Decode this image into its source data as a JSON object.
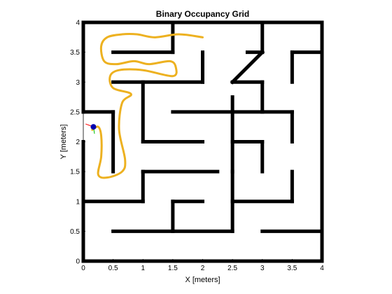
{
  "chart_data": {
    "type": "occupancy-grid",
    "title": "Binary Occupancy Grid",
    "xlabel": "X [meters]",
    "ylabel": "Y [meters]",
    "xlim": [
      0,
      4
    ],
    "ylim": [
      0,
      4
    ],
    "xticks": [
      "0",
      "0.5",
      "1",
      "1.5",
      "2",
      "2.5",
      "3",
      "3.5",
      "4"
    ],
    "yticks": [
      "0",
      "0.5",
      "1",
      "1.5",
      "2",
      "2.5",
      "3",
      "3.5",
      "4"
    ],
    "colors": {
      "wall": "#000000",
      "path": "#EDB120",
      "robot_body": "#0000B0",
      "heading_x": "#FF0000",
      "heading_y": "#00C000"
    },
    "walls": [
      [
        [
          0,
          0
        ],
        [
          4,
          0
        ]
      ],
      [
        [
          0,
          4
        ],
        [
          4,
          4
        ]
      ],
      [
        [
          0,
          0
        ],
        [
          0,
          2
        ]
      ],
      [
        [
          0,
          2.5
        ],
        [
          0,
          4
        ]
      ],
      [
        [
          4,
          0
        ],
        [
          4,
          4
        ]
      ],
      [
        [
          0.5,
          3.5
        ],
        [
          1.5,
          3.5
        ]
      ],
      [
        [
          1.5,
          3.5
        ],
        [
          1.5,
          4
        ]
      ],
      [
        [
          3,
          3.5
        ],
        [
          3,
          4
        ]
      ],
      [
        [
          2.75,
          3.5
        ],
        [
          3,
          3.5
        ]
      ],
      [
        [
          3.5,
          3.5
        ],
        [
          4,
          3.5
        ]
      ],
      [
        [
          3.5,
          3.0
        ],
        [
          3.5,
          3.5
        ]
      ],
      [
        [
          2,
          3
        ],
        [
          2,
          3.5
        ]
      ],
      [
        [
          0.5,
          3
        ],
        [
          2,
          3
        ]
      ],
      [
        [
          1,
          2
        ],
        [
          1,
          3
        ]
      ],
      [
        [
          1,
          2
        ],
        [
          2,
          2
        ]
      ],
      [
        [
          2.5,
          3
        ],
        [
          3,
          3.5
        ]
      ],
      [
        [
          2.5,
          3
        ],
        [
          3,
          3
        ]
      ],
      [
        [
          2.5,
          2.0
        ],
        [
          2.5,
          2.75
        ]
      ],
      [
        [
          0,
          2.5
        ],
        [
          0.5,
          2.5
        ]
      ],
      [
        [
          0.5,
          1.5
        ],
        [
          0.5,
          2.5
        ]
      ],
      [
        [
          1.5,
          2.5
        ],
        [
          3,
          2.5
        ]
      ],
      [
        [
          3,
          2.5
        ],
        [
          3,
          3
        ]
      ],
      [
        [
          3,
          2.5
        ],
        [
          3.5,
          2.5
        ]
      ],
      [
        [
          3.5,
          2
        ],
        [
          3.5,
          2.5
        ]
      ],
      [
        [
          2.5,
          2
        ],
        [
          3,
          2
        ]
      ],
      [
        [
          3,
          2
        ],
        [
          3,
          1.5
        ]
      ],
      [
        [
          2.5,
          1.5
        ],
        [
          2.5,
          2
        ]
      ],
      [
        [
          2.5,
          1.0
        ],
        [
          2.5,
          1.5
        ]
      ],
      [
        [
          2.5,
          1.0
        ],
        [
          3.5,
          1.0
        ]
      ],
      [
        [
          3.5,
          1.0
        ],
        [
          3.5,
          1.5
        ]
      ],
      [
        [
          1,
          1.5
        ],
        [
          2.25,
          1.5
        ]
      ],
      [
        [
          1,
          1.0
        ],
        [
          1,
          1.5
        ]
      ],
      [
        [
          0,
          1.0
        ],
        [
          1,
          1.0
        ]
      ],
      [
        [
          1.5,
          1.0
        ],
        [
          2,
          1.0
        ]
      ],
      [
        [
          1.5,
          0.5
        ],
        [
          1.5,
          1.0
        ]
      ],
      [
        [
          0.5,
          0.5
        ],
        [
          2.5,
          0.5
        ]
      ],
      [
        [
          2.5,
          0.5
        ],
        [
          2.5,
          1.0
        ]
      ],
      [
        [
          3,
          0.5
        ],
        [
          4,
          0.5
        ]
      ]
    ],
    "path": [
      [
        2.0,
        3.75
      ],
      [
        1.6,
        3.8
      ],
      [
        1.2,
        3.75
      ],
      [
        0.9,
        3.8
      ],
      [
        0.65,
        3.8
      ],
      [
        0.4,
        3.75
      ],
      [
        0.3,
        3.6
      ],
      [
        0.35,
        3.35
      ],
      [
        0.55,
        3.3
      ],
      [
        0.85,
        3.35
      ],
      [
        1.1,
        3.3
      ],
      [
        1.45,
        3.35
      ],
      [
        1.55,
        3.25
      ],
      [
        1.5,
        3.1
      ],
      [
        1.0,
        3.2
      ],
      [
        0.6,
        3.2
      ],
      [
        0.45,
        3.1
      ],
      [
        0.5,
        2.9
      ],
      [
        0.8,
        2.8
      ],
      [
        0.65,
        2.65
      ],
      [
        0.6,
        2.2
      ],
      [
        0.7,
        1.7
      ],
      [
        0.65,
        1.5
      ],
      [
        0.4,
        1.4
      ],
      [
        0.25,
        1.45
      ],
      [
        0.3,
        1.75
      ],
      [
        0.3,
        2.1
      ],
      [
        0.25,
        2.25
      ],
      [
        0.15,
        2.2
      ]
    ],
    "robot": {
      "x": 0.17,
      "y": 2.25,
      "heading_deg": 160
    }
  }
}
